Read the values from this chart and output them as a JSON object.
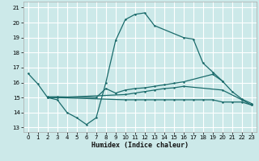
{
  "xlabel": "Humidex (Indice chaleur)",
  "bg_color": "#cce9e9",
  "grid_color": "#ffffff",
  "line_color": "#1a6b6b",
  "x_ticks": [
    0,
    1,
    2,
    3,
    4,
    5,
    6,
    7,
    8,
    9,
    10,
    11,
    12,
    13,
    14,
    15,
    16,
    17,
    18,
    19,
    20,
    21,
    22,
    23
  ],
  "y_ticks": [
    13,
    14,
    15,
    16,
    17,
    18,
    19,
    20,
    21
  ],
  "ylim": [
    12.7,
    21.4
  ],
  "xlim": [
    -0.5,
    23.5
  ],
  "curve_main": {
    "x": [
      0,
      1,
      2,
      3,
      4,
      5,
      6,
      7,
      8,
      9,
      10,
      11,
      12,
      13,
      16,
      17,
      18,
      19,
      20
    ],
    "y": [
      16.6,
      15.9,
      15.0,
      14.85,
      14.0,
      13.65,
      13.2,
      13.65,
      16.0,
      18.8,
      20.2,
      20.55,
      20.65,
      19.8,
      19.0,
      18.9,
      17.3,
      16.7,
      16.1
    ]
  },
  "curve_upper": {
    "x": [
      2,
      3,
      7,
      8,
      9,
      10,
      11,
      12,
      13,
      14,
      15,
      16,
      19,
      20,
      21,
      22,
      23
    ],
    "y": [
      15.05,
      15.05,
      15.0,
      15.6,
      15.3,
      15.5,
      15.6,
      15.65,
      15.75,
      15.85,
      15.95,
      16.05,
      16.55,
      16.1,
      15.4,
      14.9,
      14.6
    ]
  },
  "curve_mid": {
    "x": [
      2,
      3,
      10,
      11,
      12,
      13,
      14,
      15,
      16,
      20,
      22,
      23
    ],
    "y": [
      15.0,
      15.0,
      15.2,
      15.3,
      15.4,
      15.5,
      15.6,
      15.65,
      15.75,
      15.5,
      14.85,
      14.5
    ]
  },
  "curve_lower": {
    "x": [
      2,
      3,
      10,
      11,
      12,
      13,
      14,
      15,
      16,
      17,
      18,
      19,
      20,
      21,
      22,
      23
    ],
    "y": [
      15.0,
      15.0,
      14.85,
      14.85,
      14.85,
      14.85,
      14.85,
      14.85,
      14.85,
      14.85,
      14.85,
      14.85,
      14.7,
      14.7,
      14.7,
      14.5
    ]
  }
}
